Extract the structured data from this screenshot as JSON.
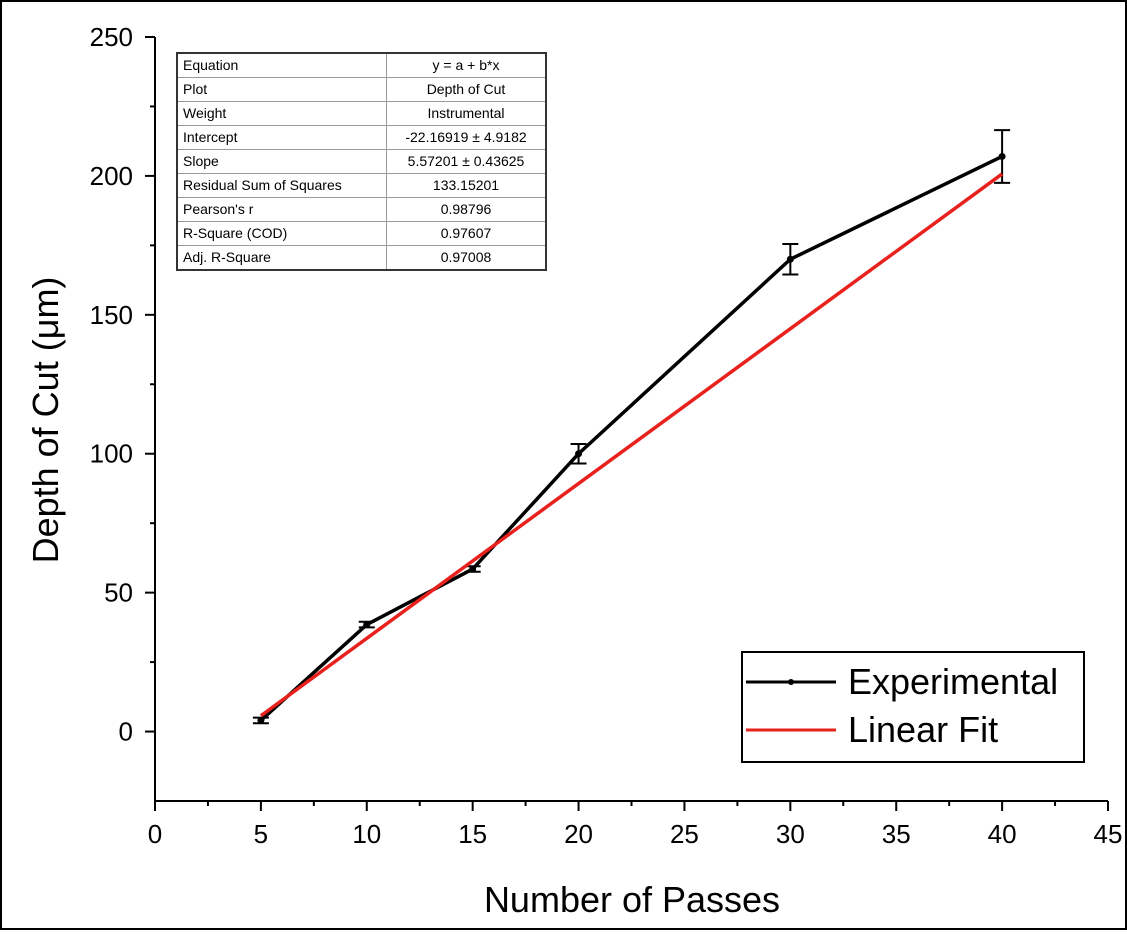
{
  "chart_data": {
    "type": "line",
    "xlabel": "Number of Passes",
    "ylabel": "Depth of Cut (μm)",
    "xlim": [
      0,
      45
    ],
    "ylim": [
      -25,
      250
    ],
    "xticks": [
      0,
      5,
      10,
      15,
      20,
      25,
      30,
      35,
      40,
      45
    ],
    "yticks": [
      0,
      50,
      100,
      150,
      200,
      250
    ],
    "grid": false,
    "legend_position": "bottom-right",
    "series": [
      {
        "name": "Experimental",
        "color": "#000000",
        "marker": "dot",
        "x": [
          5,
          10,
          15,
          20,
          30,
          40
        ],
        "y": [
          4,
          38.5,
          58.5,
          100,
          170,
          207
        ],
        "error": [
          1,
          1,
          1,
          3.5,
          5.5,
          9.5
        ]
      },
      {
        "name": "Linear Fit",
        "color": "#e8211d",
        "type": "line",
        "x": [
          5,
          40
        ],
        "y": [
          5.69,
          200.71
        ]
      }
    ],
    "fit_table": [
      {
        "key": "Equation",
        "value": "y = a + b*x"
      },
      {
        "key": "Plot",
        "value": "Depth of Cut"
      },
      {
        "key": "Weight",
        "value": "Instrumental"
      },
      {
        "key": "Intercept",
        "value": "-22.16919 ± 4.9182"
      },
      {
        "key": "Slope",
        "value": "5.57201 ± 0.43625"
      },
      {
        "key": "Residual Sum of Squares",
        "value": "133.15201"
      },
      {
        "key": "Pearson's r",
        "value": "0.98796"
      },
      {
        "key": "R-Square (COD)",
        "value": "0.97607"
      },
      {
        "key": "Adj. R-Square",
        "value": "0.97008"
      }
    ]
  }
}
